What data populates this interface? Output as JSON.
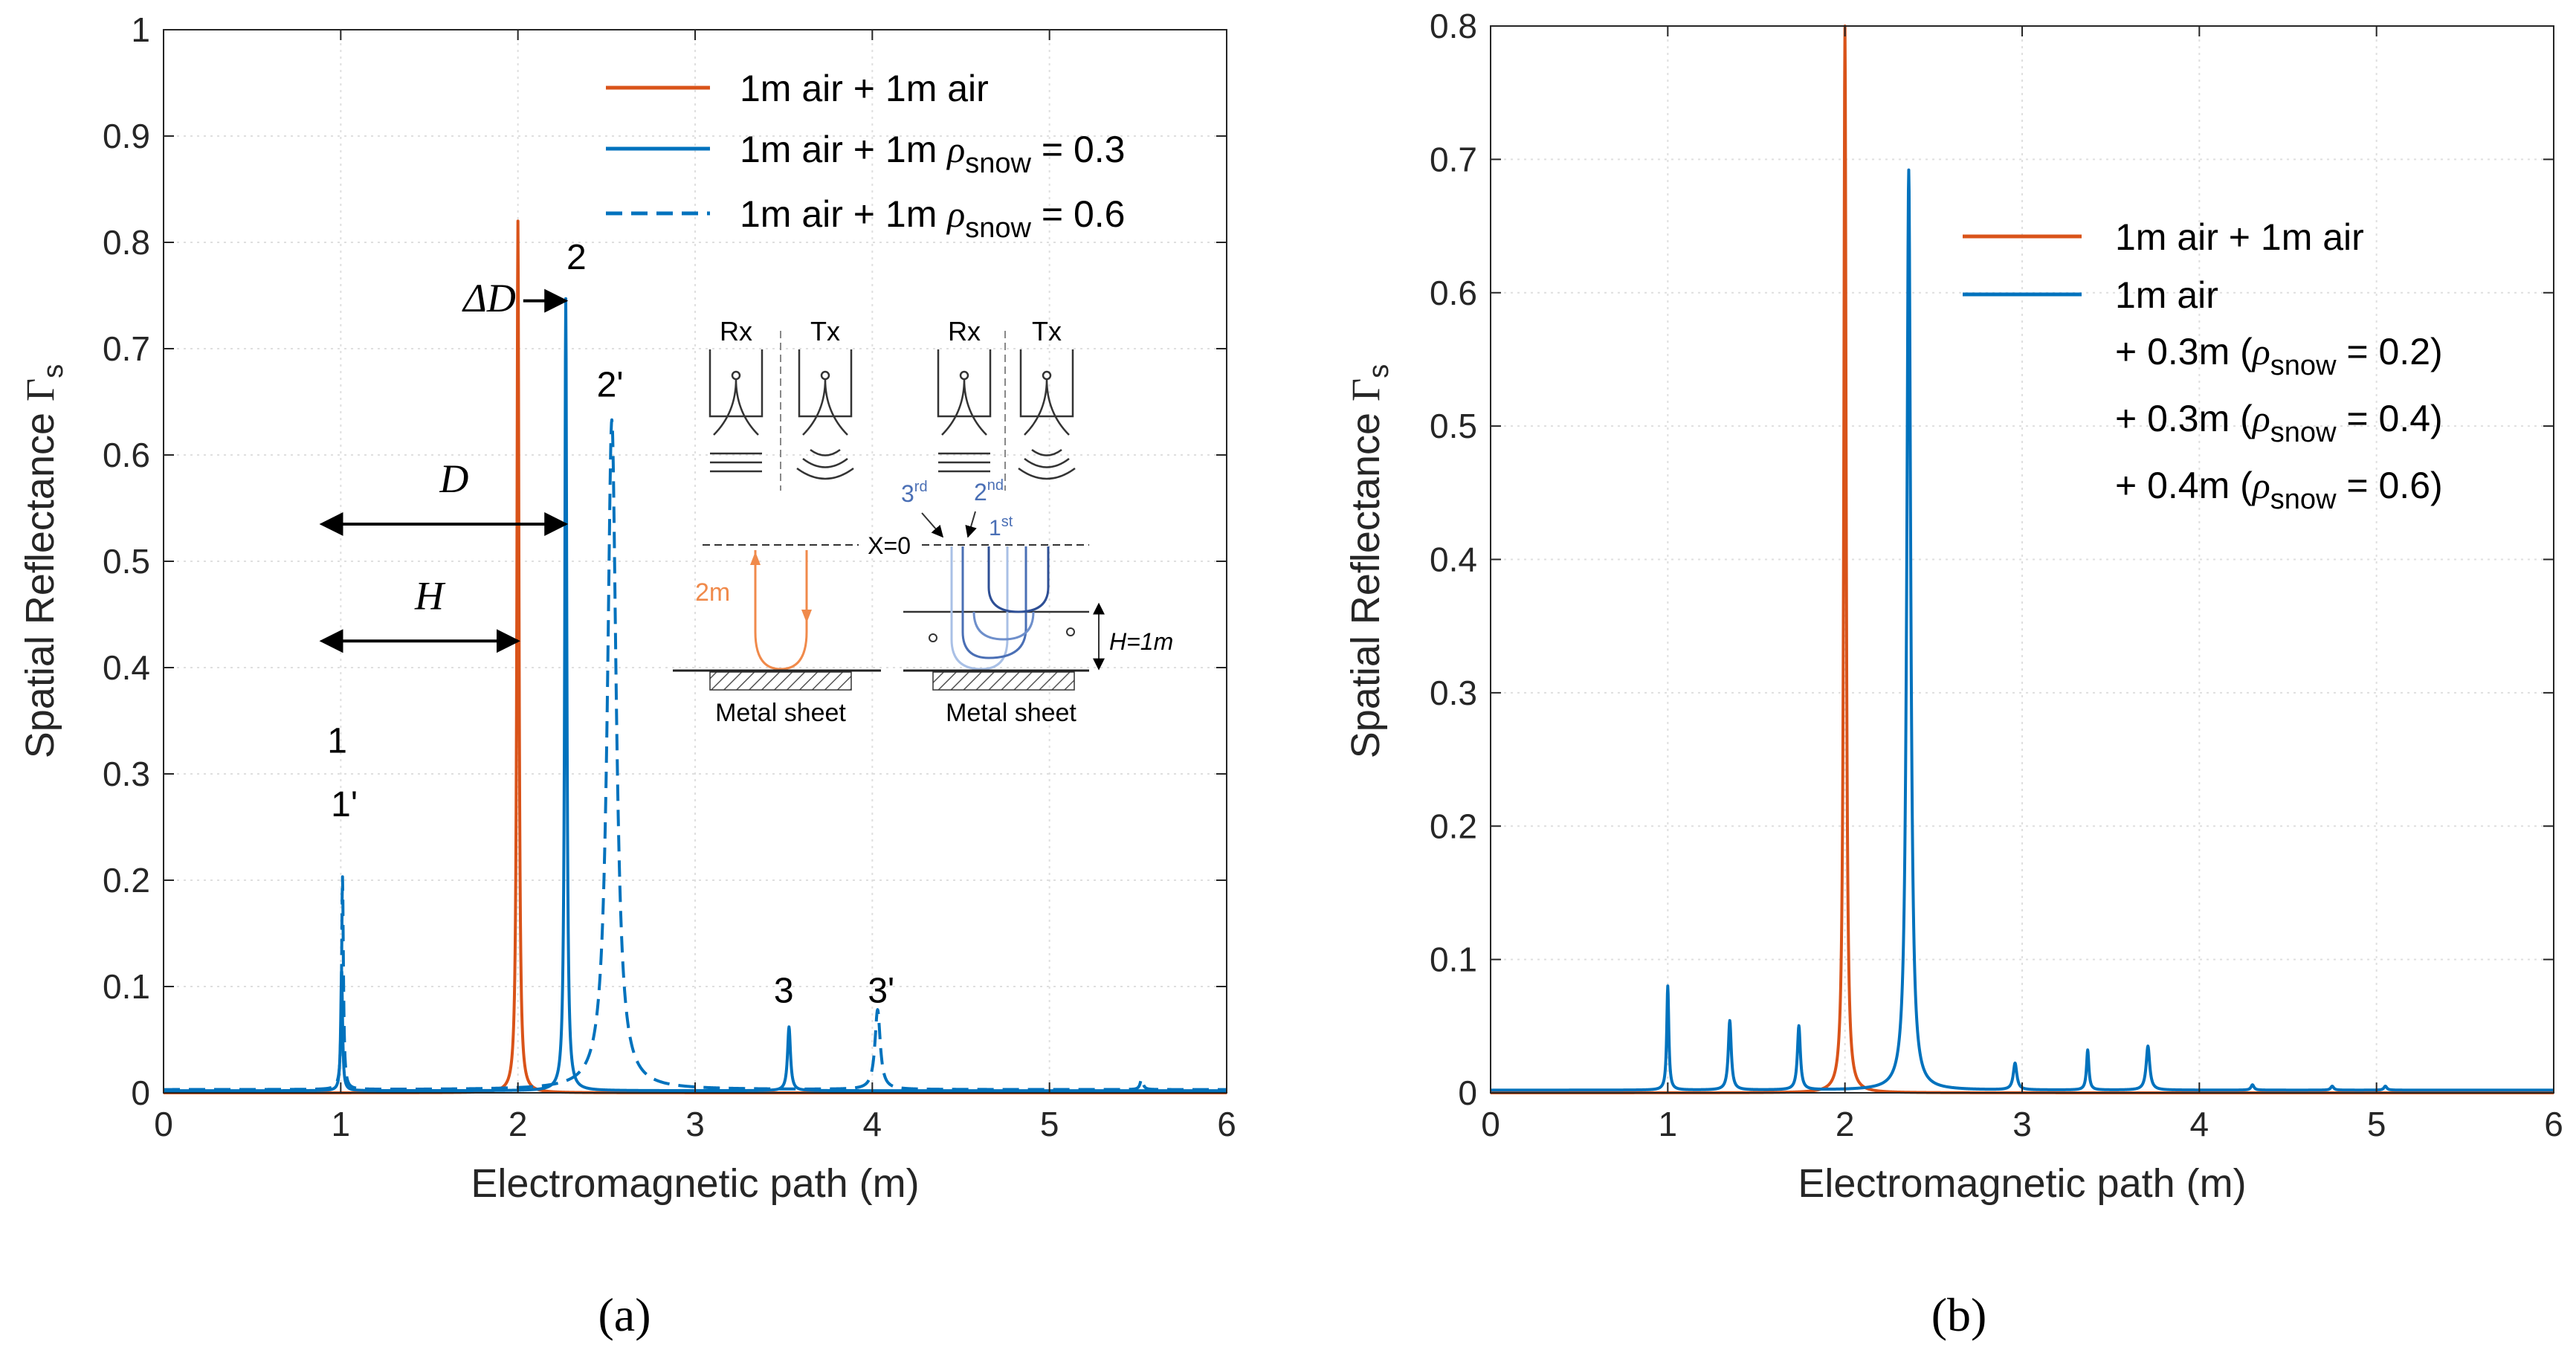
{
  "colors": {
    "orange": "#D95319",
    "blue": "#0072BD",
    "axis": "#262626",
    "grid": "#DFDFDF",
    "inset_orange": "#F08A4B",
    "inset_blue": "#4A6FB5"
  },
  "chart_data": [
    {
      "id": "a",
      "type": "line",
      "panel_label": "(a)",
      "xlabel": "Electromagnetic path (m)",
      "ylabel_text": "Spatial Reflectance ",
      "ylabel_symbol": "Γ",
      "ylabel_sub": "s",
      "xlim": [
        0,
        6
      ],
      "ylim": [
        0,
        1
      ],
      "xticks": [
        0,
        1,
        2,
        3,
        4,
        5,
        6
      ],
      "yticks": [
        0,
        0.1,
        0.2,
        0.3,
        0.4,
        0.5,
        0.6,
        0.7,
        0.8,
        0.9,
        1
      ],
      "xtick_labels": [
        "0",
        "1",
        "2",
        "3",
        "4",
        "5",
        "6"
      ],
      "ytick_labels": [
        "0",
        "0.1",
        "0.2",
        "0.3",
        "0.4",
        "0.5",
        "0.6",
        "0.7",
        "0.8",
        "0.9",
        "1"
      ],
      "grid": "dotted",
      "legend_position": "top-right",
      "legend": [
        {
          "text": "1m air + 1m air",
          "style": "solid-orange"
        },
        {
          "text": "1m air + 1m ",
          "rho": "ρ",
          "sub": "snow",
          "tail": " = 0.3",
          "style": "solid-blue"
        },
        {
          "text": "1m air + 1m ",
          "rho": "ρ",
          "sub": "snow",
          "tail": " = 0.6",
          "style": "dashed-blue"
        }
      ],
      "series": [
        {
          "name": "1m air + 1m air",
          "style": "solid",
          "color": "orange",
          "baseline": 0.0,
          "peaks": [
            {
              "x": 2.0,
              "y": 0.82,
              "w": 0.007
            }
          ]
        },
        {
          "name": "1m air + 1m ρsnow = 0.3",
          "style": "solid",
          "color": "blue",
          "baseline": 0.002,
          "peaks": [
            {
              "x": 1.005,
              "y": 0.115,
              "w": 0.006
            },
            {
              "x": 2.27,
              "y": 0.745,
              "w": 0.007
            },
            {
              "x": 3.53,
              "y": 0.06,
              "w": 0.01
            }
          ]
        },
        {
          "name": "1m air + 1m ρsnow = 0.6",
          "style": "dashed",
          "color": "blue",
          "baseline": 0.003,
          "peaks": [
            {
              "x": 1.01,
              "y": 0.2,
              "w": 0.006
            },
            {
              "x": 2.53,
              "y": 0.63,
              "w": 0.03
            },
            {
              "x": 4.03,
              "y": 0.075,
              "w": 0.018
            },
            {
              "x": 5.52,
              "y": 0.01,
              "w": 0.01
            }
          ]
        }
      ],
      "annotations": {
        "peak_labels": [
          {
            "text": "1",
            "x": 0.98,
            "y": 0.32
          },
          {
            "text": "1'",
            "x": 1.02,
            "y": 0.26
          },
          {
            "text": "2",
            "x": 2.33,
            "y": 0.775
          },
          {
            "text": "2'",
            "x": 2.52,
            "y": 0.655
          },
          {
            "text": "3",
            "x": 3.5,
            "y": 0.085
          },
          {
            "text": "3'",
            "x": 4.05,
            "y": 0.085
          }
        ],
        "arrows": [
          {
            "label": "ΔD",
            "from": 2.03,
            "to": 2.27,
            "y": 0.745,
            "heads": "end",
            "label_x": 1.84,
            "label_y": 0.735
          },
          {
            "label": "D",
            "from": 1.0,
            "to": 2.27,
            "y": 0.535,
            "heads": "both",
            "label_x": 1.64,
            "label_y": 0.565
          },
          {
            "label": "H",
            "from": 1.0,
            "to": 2.0,
            "y": 0.425,
            "heads": "both",
            "label_x": 1.5,
            "label_y": 0.455
          }
        ]
      },
      "inset": {
        "rx": "Rx",
        "tx": "Tx",
        "two_m": "2m",
        "x0": "X=0",
        "order1": "1",
        "order1_sup": "st",
        "order2": "2",
        "order2_sup": "nd",
        "order3": "3",
        "order3_sup": "rd",
        "h_label": "H=1m",
        "metal_sheet": "Metal sheet"
      }
    },
    {
      "id": "b",
      "type": "line",
      "panel_label": "(b)",
      "xlabel": "Electromagnetic path (m)",
      "ylabel_text": "Spatial Reflectance ",
      "ylabel_symbol": "Γ",
      "ylabel_sub": "s",
      "xlim": [
        0,
        6
      ],
      "ylim": [
        0,
        0.8
      ],
      "xticks": [
        0,
        1,
        2,
        3,
        4,
        5,
        6
      ],
      "yticks": [
        0,
        0.1,
        0.2,
        0.3,
        0.4,
        0.5,
        0.6,
        0.7,
        0.8
      ],
      "xtick_labels": [
        "0",
        "1",
        "2",
        "3",
        "4",
        "5",
        "6"
      ],
      "ytick_labels": [
        "0",
        "0.1",
        "0.2",
        "0.3",
        "0.4",
        "0.5",
        "0.6",
        "0.7",
        "0.8"
      ],
      "grid": "dotted",
      "legend_position": "top-right",
      "legend_entries": [
        {
          "text": "1m air + 1m air",
          "color": "orange"
        },
        {
          "text": "1m air",
          "color": "blue"
        }
      ],
      "legend_extra": [
        {
          "pre": "+ 0.3m (",
          "rho": "ρ",
          "sub": "snow",
          "tail": " = 0.2)"
        },
        {
          "pre": "+ 0.3m (",
          "rho": "ρ",
          "sub": "snow",
          "tail": " = 0.4)"
        },
        {
          "pre": "+ 0.4m (",
          "rho": "ρ",
          "sub": "snow",
          "tail": " = 0.6)"
        }
      ],
      "series": [
        {
          "name": "1m air + 1m air",
          "style": "solid",
          "color": "orange",
          "baseline": 0.0,
          "peaks": [
            {
              "x": 2.0,
              "y": 0.8,
              "w": 0.008
            }
          ]
        },
        {
          "name": "1m air + 0.3m (ρsnow = 0.2) + 0.3m (ρsnow = 0.4) + 0.4m (ρsnow = 0.6)",
          "style": "solid",
          "color": "blue",
          "baseline": 0.002,
          "peaks": [
            {
              "x": 1.0,
              "y": 0.078,
              "w": 0.007
            },
            {
              "x": 1.35,
              "y": 0.052,
              "w": 0.01
            },
            {
              "x": 1.74,
              "y": 0.048,
              "w": 0.01
            },
            {
              "x": 2.36,
              "y": 0.69,
              "w": 0.013
            },
            {
              "x": 2.96,
              "y": 0.02,
              "w": 0.012
            },
            {
              "x": 3.37,
              "y": 0.03,
              "w": 0.008
            },
            {
              "x": 3.71,
              "y": 0.033,
              "w": 0.012
            },
            {
              "x": 4.3,
              "y": 0.004,
              "w": 0.01
            },
            {
              "x": 4.75,
              "y": 0.003,
              "w": 0.01
            },
            {
              "x": 5.05,
              "y": 0.003,
              "w": 0.01
            }
          ]
        }
      ]
    }
  ]
}
